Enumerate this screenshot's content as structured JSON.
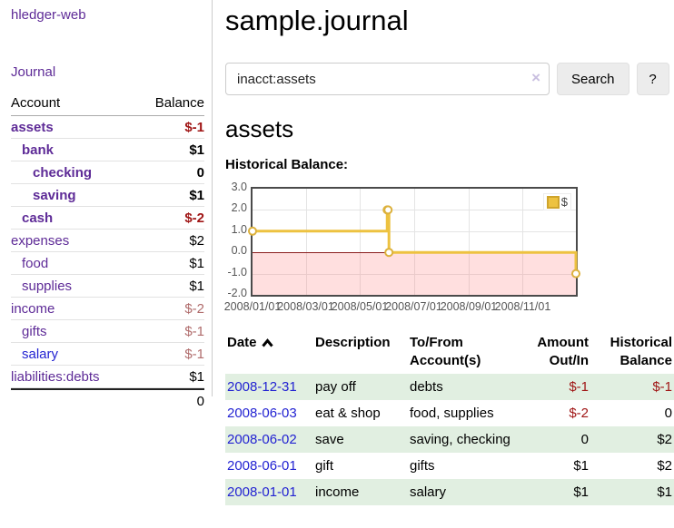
{
  "app": {
    "brand": "hledger-web",
    "nav_journal": "Journal"
  },
  "sidebar": {
    "accounts_header": {
      "account": "Account",
      "balance": "Balance"
    },
    "accounts": [
      {
        "name": "assets",
        "balance": "$-1",
        "indent": 0,
        "bold": true,
        "name_color": "purple",
        "balance_color": "negstrong"
      },
      {
        "name": "bank",
        "balance": "$1",
        "indent": 1,
        "bold": true,
        "name_color": "purple",
        "balance_color": "black"
      },
      {
        "name": "checking",
        "balance": "0",
        "indent": 2,
        "bold": true,
        "name_color": "purple",
        "balance_color": "black"
      },
      {
        "name": "saving",
        "balance": "$1",
        "indent": 2,
        "bold": true,
        "name_color": "purple",
        "balance_color": "black"
      },
      {
        "name": "cash",
        "balance": "$-2",
        "indent": 1,
        "bold": true,
        "name_color": "purple",
        "balance_color": "negstrong"
      },
      {
        "name": "expenses",
        "balance": "$2",
        "indent": 0,
        "bold": false,
        "name_color": "purple",
        "balance_color": "black"
      },
      {
        "name": "food",
        "balance": "$1",
        "indent": 1,
        "bold": false,
        "name_color": "purple",
        "balance_color": "black"
      },
      {
        "name": "supplies",
        "balance": "$1",
        "indent": 1,
        "bold": false,
        "name_color": "purple",
        "balance_color": "black"
      },
      {
        "name": "income",
        "balance": "$-2",
        "indent": 0,
        "bold": false,
        "name_color": "purple",
        "balance_color": "negmuted"
      },
      {
        "name": "gifts",
        "balance": "$-1",
        "indent": 1,
        "bold": false,
        "name_color": "purple",
        "balance_color": "negmuted"
      },
      {
        "name": "salary",
        "balance": "$-1",
        "indent": 1,
        "bold": false,
        "name_color": "blue",
        "balance_color": "negmuted"
      },
      {
        "name": "liabilities:debts",
        "balance": "$1",
        "indent": 0,
        "bold": false,
        "name_color": "purple",
        "balance_color": "black"
      }
    ],
    "total": "0"
  },
  "header": {
    "title": "sample.journal"
  },
  "search": {
    "value": "inacct:assets",
    "clear_icon": "×",
    "button_label": "Search",
    "help_label": "?"
  },
  "account_page": {
    "title": "assets",
    "chart_label": "Historical Balance:"
  },
  "chart_data": {
    "type": "line",
    "title": "Historical Balance",
    "series": [
      {
        "name": "$",
        "color": "#edc240",
        "marker_color": "#dcb13c",
        "style": "step-after",
        "points": [
          {
            "date": "2008-01-01",
            "value": 1
          },
          {
            "date": "2008-06-01",
            "value": 2
          },
          {
            "date": "2008-06-02",
            "value": 2
          },
          {
            "date": "2008-06-03",
            "value": 0
          },
          {
            "date": "2008-12-31",
            "value": -1
          }
        ]
      }
    ],
    "x_range": [
      "2008-01-01",
      "2008-12-31"
    ],
    "x_tick_dates": [
      "2008-01-01",
      "2008-03-01",
      "2008-05-01",
      "2008-07-01",
      "2008-09-01",
      "2008-11-01"
    ],
    "x_tick_labels": [
      "2008/01/01",
      "2008/03/01",
      "2008/05/01",
      "2008/07/01",
      "2008/09/01",
      "2008/11/01"
    ],
    "y_ticks": [
      3.0,
      2.0,
      1.0,
      0.0,
      -1.0,
      -2.0
    ],
    "ylim": [
      -2,
      3
    ],
    "grid": true,
    "negative_region": true,
    "zero_line_color": "#8b1d1d",
    "legend_position": "top-right",
    "legend_label": "$"
  },
  "register_table": {
    "columns": [
      "Date",
      "Description",
      "To/From Account(s)",
      "Amount Out/In",
      "Historical Balance"
    ],
    "sort_icon": "chevron-up",
    "rows": [
      {
        "date": "2008-12-31",
        "description": "pay off",
        "accounts": "debts",
        "amount": "$-1",
        "balance": "$-1"
      },
      {
        "date": "2008-06-03",
        "description": "eat & shop",
        "accounts": "food, supplies",
        "amount": "$-2",
        "balance": "0"
      },
      {
        "date": "2008-06-02",
        "description": "save",
        "accounts": "saving, checking",
        "amount": "0",
        "balance": "$2"
      },
      {
        "date": "2008-06-01",
        "description": "gift",
        "accounts": "gifts",
        "amount": "$1",
        "balance": "$2"
      },
      {
        "date": "2008-01-01",
        "description": "income",
        "accounts": "salary",
        "amount": "$1",
        "balance": "$1"
      }
    ]
  }
}
